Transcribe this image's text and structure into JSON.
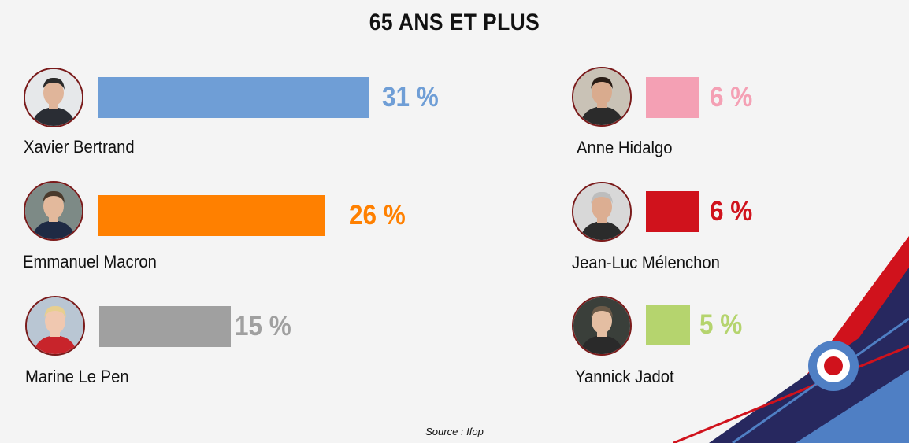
{
  "title": "65 ANS ET PLUS",
  "source": "Source :  Ifop",
  "chart_data": {
    "type": "bar",
    "title": "65 ANS ET PLUS",
    "categories": [
      "Xavier Bertrand",
      "Emmanuel Macron",
      "Marine Le Pen",
      "Anne Hidalgo",
      "Jean-Luc Mélenchon",
      "Yannick Jadot"
    ],
    "values": [
      31,
      26,
      15,
      6,
      6,
      5
    ],
    "value_labels": [
      "31 %",
      "26 %",
      "15 %",
      "6 %",
      "6 %",
      "5 %"
    ],
    "colors": [
      "#6f9ed6",
      "#ff8000",
      "#a0a0a0",
      "#f4a0b4",
      "#d0121c",
      "#b5d46e"
    ],
    "avatar_icons": [
      "portrait-bertrand-icon",
      "portrait-macron-icon",
      "portrait-lepen-icon",
      "portrait-hidalgo-icon",
      "portrait-melenchon-icon",
      "portrait-jadot-icon"
    ],
    "unit": "%",
    "xlim": [
      0,
      31
    ]
  }
}
